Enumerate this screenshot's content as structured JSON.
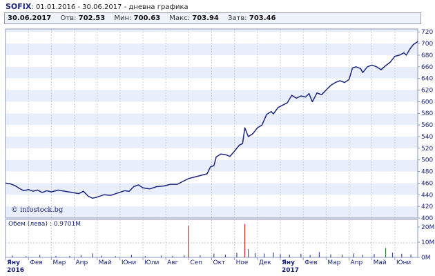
{
  "header": {
    "index": "SOFIX",
    "subtitle": "01.01.2016 - 30.06.2017 - дневна графика"
  },
  "quote": {
    "date": "30.06.2017",
    "open_label": "Отв:",
    "open": "702.53",
    "low_label": "Мин:",
    "low": "700.63",
    "high_label": "Макс:",
    "high": "703.94",
    "close_label": "Затв:",
    "close": "703.46"
  },
  "watermark": "© infostock.bg",
  "volume_label": "Обем (лева) : 0.9701M",
  "chart_data": {
    "type": "line",
    "y_ticks": [
      720,
      700,
      680,
      660,
      640,
      620,
      600,
      580,
      560,
      540,
      520,
      500,
      480,
      460,
      440,
      420,
      400
    ],
    "ylim": [
      400,
      725
    ],
    "volume_ticks": [
      "20M",
      "10M",
      "0M"
    ],
    "volume_ylim": [
      0,
      25
    ],
    "months": [
      "Яну",
      "Фев",
      "Мар",
      "Апр",
      "Май",
      "Юни",
      "Юли",
      "Авг",
      "Сеп",
      "Окт",
      "Ное",
      "Дек",
      "Яну",
      "Фев",
      "Мар",
      "Апр",
      "Май",
      "Юни"
    ],
    "years": [
      "2016",
      "2017"
    ],
    "x_range": [
      0,
      18
    ],
    "price": [
      [
        0.0,
        460
      ],
      [
        0.2,
        459
      ],
      [
        0.4,
        456
      ],
      [
        0.6,
        451
      ],
      [
        0.8,
        447
      ],
      [
        1.0,
        449
      ],
      [
        1.2,
        446
      ],
      [
        1.4,
        448
      ],
      [
        1.6,
        444
      ],
      [
        1.8,
        447
      ],
      [
        2.0,
        445
      ],
      [
        2.3,
        448
      ],
      [
        2.6,
        446
      ],
      [
        2.9,
        444
      ],
      [
        3.2,
        442
      ],
      [
        3.4,
        446
      ],
      [
        3.6,
        438
      ],
      [
        3.8,
        434
      ],
      [
        4.0,
        436
      ],
      [
        4.3,
        440
      ],
      [
        4.6,
        439
      ],
      [
        4.9,
        443
      ],
      [
        5.2,
        447
      ],
      [
        5.4,
        446
      ],
      [
        5.6,
        454
      ],
      [
        5.8,
        457
      ],
      [
        6.0,
        452
      ],
      [
        6.3,
        450
      ],
      [
        6.6,
        454
      ],
      [
        6.9,
        455
      ],
      [
        7.2,
        458
      ],
      [
        7.5,
        458
      ],
      [
        7.8,
        464
      ],
      [
        8.0,
        468
      ],
      [
        8.2,
        470
      ],
      [
        8.5,
        473
      ],
      [
        8.8,
        476
      ],
      [
        8.95,
        488
      ],
      [
        9.1,
        490
      ],
      [
        9.2,
        505
      ],
      [
        9.4,
        510
      ],
      [
        9.6,
        509
      ],
      [
        9.8,
        506
      ],
      [
        10.0,
        515
      ],
      [
        10.2,
        525
      ],
      [
        10.35,
        528
      ],
      [
        10.45,
        555
      ],
      [
        10.6,
        540
      ],
      [
        10.8,
        545
      ],
      [
        11.0,
        555
      ],
      [
        11.2,
        560
      ],
      [
        11.4,
        578
      ],
      [
        11.6,
        583
      ],
      [
        11.7,
        579
      ],
      [
        11.9,
        590
      ],
      [
        12.1,
        594
      ],
      [
        12.3,
        598
      ],
      [
        12.5,
        611
      ],
      [
        12.7,
        606
      ],
      [
        12.9,
        610
      ],
      [
        13.1,
        608
      ],
      [
        13.25,
        614
      ],
      [
        13.4,
        600
      ],
      [
        13.6,
        615
      ],
      [
        13.8,
        612
      ],
      [
        14.0,
        620
      ],
      [
        14.2,
        628
      ],
      [
        14.4,
        633
      ],
      [
        14.6,
        636
      ],
      [
        14.8,
        633
      ],
      [
        15.0,
        638
      ],
      [
        15.15,
        658
      ],
      [
        15.3,
        660
      ],
      [
        15.5,
        657
      ],
      [
        15.6,
        650
      ],
      [
        15.8,
        660
      ],
      [
        16.0,
        663
      ],
      [
        16.2,
        660
      ],
      [
        16.4,
        655
      ],
      [
        16.6,
        662
      ],
      [
        16.8,
        668
      ],
      [
        17.0,
        678
      ],
      [
        17.2,
        680
      ],
      [
        17.4,
        684
      ],
      [
        17.5,
        680
      ],
      [
        17.65,
        690
      ],
      [
        17.8,
        698
      ],
      [
        18.0,
        703.46
      ]
    ],
    "volume": [
      [
        0.3,
        1.2
      ],
      [
        0.9,
        0.8
      ],
      [
        1.5,
        1.5
      ],
      [
        2.2,
        1.0
      ],
      [
        2.8,
        0.9
      ],
      [
        3.3,
        1.4
      ],
      [
        3.8,
        2.6
      ],
      [
        4.2,
        1.1
      ],
      [
        4.8,
        0.8
      ],
      [
        5.5,
        1.6
      ],
      [
        6.1,
        0.9
      ],
      [
        6.8,
        1.2
      ],
      [
        7.3,
        1.0
      ],
      [
        7.8,
        1.3
      ],
      [
        8.0,
        20.8
      ],
      [
        8.5,
        1.4
      ],
      [
        9.1,
        2.5
      ],
      [
        9.6,
        1.8
      ],
      [
        10.1,
        3.0
      ],
      [
        10.45,
        22.0
      ],
      [
        10.6,
        5.5
      ],
      [
        10.9,
        2.8
      ],
      [
        11.3,
        2.5
      ],
      [
        11.7,
        3.2
      ],
      [
        12.0,
        2.1
      ],
      [
        12.4,
        1.8
      ],
      [
        12.9,
        2.4
      ],
      [
        13.3,
        1.5
      ],
      [
        13.7,
        3.5
      ],
      [
        14.2,
        2.0
      ],
      [
        14.7,
        1.9
      ],
      [
        15.2,
        2.6
      ],
      [
        15.6,
        1.7
      ],
      [
        16.1,
        2.2
      ],
      [
        16.6,
        6.2
      ],
      [
        16.9,
        3.1
      ],
      [
        17.3,
        2.4
      ],
      [
        17.7,
        1.9
      ]
    ]
  }
}
